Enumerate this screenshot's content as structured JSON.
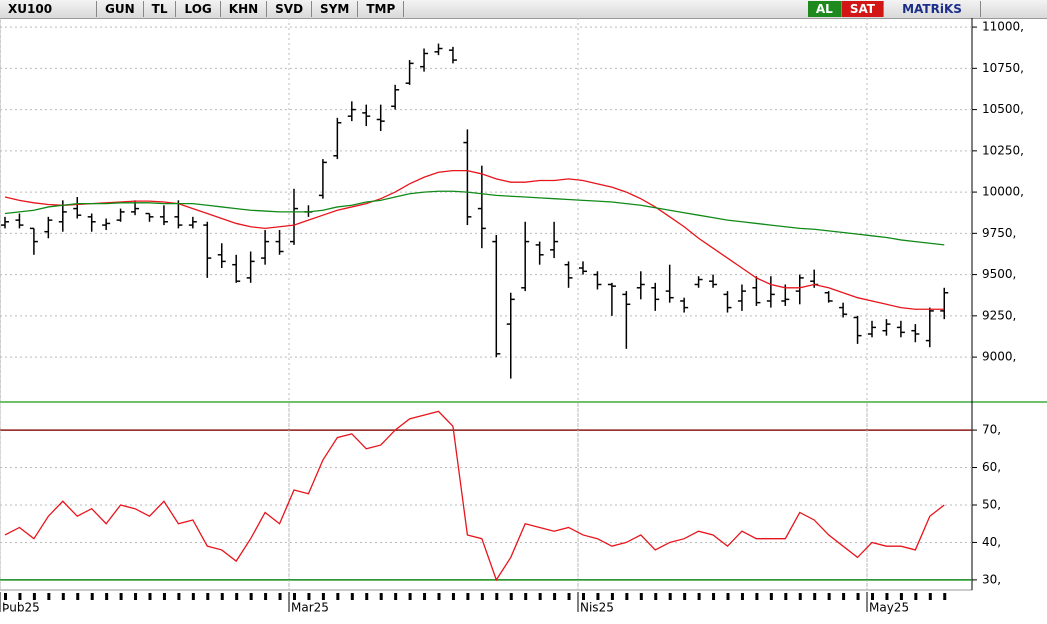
{
  "toolbar": {
    "symbol": "XU100",
    "buttons": [
      "GUN",
      "TL",
      "LOG",
      "KHN",
      "SVD",
      "SYM",
      "TMP"
    ],
    "buy": "AL",
    "sell": "SAT",
    "brand": "MATRiKS"
  },
  "chart_data": [
    {
      "type": "ohlc",
      "open": [
        9800,
        9830,
        9780,
        9760,
        9820,
        9900,
        9850,
        9800,
        9830,
        9880,
        9870,
        9850,
        9850,
        9800,
        9800,
        9620,
        9560,
        9480,
        9600,
        9700,
        9700,
        9880,
        9980,
        10220,
        10460,
        10480,
        10440,
        10520,
        10660,
        10760,
        10850,
        10860,
        10300,
        9900,
        9700,
        9200,
        9420,
        9680,
        9650,
        9560,
        9540,
        9500,
        9440,
        9380,
        9420,
        9420,
        9400,
        9340,
        9440,
        9460,
        9380,
        9340,
        9420,
        9340,
        9340,
        9400,
        9460,
        9390,
        9300,
        9240,
        9140,
        9160,
        9180,
        9160,
        9100,
        9280
      ],
      "high": [
        9850,
        9870,
        9780,
        9850,
        9950,
        9970,
        9870,
        9840,
        9900,
        9950,
        9870,
        9920,
        9950,
        9850,
        9820,
        9690,
        9620,
        9640,
        9770,
        9770,
        10020,
        9920,
        10200,
        10450,
        10550,
        10530,
        10530,
        10650,
        10800,
        10870,
        10900,
        10880,
        10380,
        10160,
        9740,
        9390,
        9820,
        9700,
        9820,
        9580,
        9580,
        9520,
        9450,
        9400,
        9520,
        9450,
        9560,
        9360,
        9490,
        9500,
        9400,
        9440,
        9490,
        9490,
        9440,
        9500,
        9530,
        9400,
        9330,
        9250,
        9220,
        9230,
        9220,
        9200,
        9300,
        9420
      ],
      "low": [
        9780,
        9780,
        9620,
        9720,
        9760,
        9840,
        9760,
        9770,
        9820,
        9860,
        9820,
        9800,
        9780,
        9780,
        9480,
        9540,
        9450,
        9450,
        9560,
        9620,
        9680,
        9850,
        9960,
        10200,
        10430,
        10400,
        10370,
        10500,
        10650,
        10730,
        10830,
        10780,
        9800,
        9660,
        9000,
        8870,
        9400,
        9560,
        9600,
        9420,
        9500,
        9410,
        9250,
        9050,
        9350,
        9280,
        9330,
        9270,
        9420,
        9420,
        9270,
        9280,
        9310,
        9300,
        9310,
        9320,
        9420,
        9330,
        9240,
        9080,
        9120,
        9130,
        9120,
        9090,
        9060,
        9230
      ],
      "close": [
        9820,
        9800,
        9700,
        9830,
        9880,
        9860,
        9820,
        9810,
        9880,
        9900,
        9850,
        9820,
        9800,
        9820,
        9600,
        9580,
        9460,
        9580,
        9700,
        9640,
        9900,
        9880,
        10180,
        10420,
        10500,
        10460,
        10430,
        10620,
        10780,
        10840,
        10870,
        10800,
        9850,
        9780,
        9020,
        9350,
        9700,
        9620,
        9700,
        9480,
        9520,
        9440,
        9430,
        9320,
        9440,
        9350,
        9360,
        9300,
        9470,
        9440,
        9300,
        9400,
        9330,
        9380,
        9350,
        9480,
        9440,
        9340,
        9260,
        9130,
        9180,
        9200,
        9150,
        9140,
        9280,
        9390
      ],
      "bar_color": "#000000",
      "series": [
        {
          "color": "#e8141b",
          "values": [
            9970,
            9950,
            9935,
            9925,
            9920,
            9925,
            9930,
            9935,
            9940,
            9945,
            9945,
            9940,
            9930,
            9900,
            9870,
            9840,
            9810,
            9790,
            9780,
            9790,
            9800,
            9830,
            9860,
            9890,
            9910,
            9930,
            9960,
            10000,
            10050,
            10090,
            10120,
            10130,
            10130,
            10110,
            10080,
            10060,
            10060,
            10070,
            10070,
            10080,
            10070,
            10050,
            10030,
            10000,
            9960,
            9910,
            9850,
            9790,
            9720,
            9660,
            9600,
            9540,
            9480,
            9440,
            9420,
            9420,
            9440,
            9420,
            9390,
            9360,
            9340,
            9320,
            9300,
            9290,
            9290,
            9290
          ]
        },
        {
          "color": "#108a18",
          "values": [
            9870,
            9880,
            9890,
            9910,
            9920,
            9930,
            9930,
            9930,
            9935,
            9935,
            9935,
            9930,
            9930,
            9930,
            9920,
            9910,
            9900,
            9890,
            9885,
            9880,
            9880,
            9880,
            9890,
            9910,
            9920,
            9940,
            9950,
            9970,
            9990,
            10000,
            10005,
            10005,
            10000,
            9990,
            9980,
            9975,
            9970,
            9965,
            9960,
            9955,
            9950,
            9945,
            9940,
            9930,
            9920,
            9905,
            9890,
            9875,
            9860,
            9845,
            9830,
            9820,
            9810,
            9800,
            9790,
            9780,
            9775,
            9765,
            9755,
            9745,
            9735,
            9725,
            9710,
            9700,
            9690,
            9680
          ]
        }
      ],
      "ylim": [
        8740,
        11055
      ],
      "yticks": [
        {
          "value": 9000,
          "label": "9000,"
        },
        {
          "value": 9250,
          "label": "9250,"
        },
        {
          "value": 9500,
          "label": "9500,"
        },
        {
          "value": 9750,
          "label": "9750,"
        },
        {
          "value": 10000,
          "label": "10000,"
        },
        {
          "value": 10250,
          "label": "10250,"
        },
        {
          "value": 10500,
          "label": "10500,"
        },
        {
          "value": 10750,
          "label": "10750,"
        },
        {
          "value": 11000,
          "label": "11000,"
        }
      ],
      "month_labels": [
        {
          "index": 0,
          "label": "Þub25"
        },
        {
          "index": 20,
          "label": "Mar25"
        },
        {
          "index": 40,
          "label": "Nis25"
        },
        {
          "index": 60,
          "label": "May25"
        }
      ],
      "grid": true
    },
    {
      "type": "line",
      "series": [
        {
          "color": "#e8141b",
          "values": [
            42,
            44,
            41,
            47,
            51,
            47,
            49,
            45,
            50,
            49,
            47,
            51,
            45,
            46,
            39,
            38,
            35,
            41,
            48,
            45,
            54,
            53,
            62,
            68,
            69,
            65,
            66,
            70,
            73,
            74,
            75,
            71,
            42,
            41,
            30,
            36,
            45,
            44,
            43,
            44,
            42,
            41,
            39,
            40,
            42,
            38,
            40,
            41,
            43,
            42,
            39,
            43,
            41,
            41,
            41,
            48,
            46,
            42,
            39,
            36,
            40,
            39,
            39,
            38,
            47,
            50
          ]
        }
      ],
      "levels": [
        {
          "value": 70,
          "color": "#8b1a1a"
        },
        {
          "value": 30,
          "color": "#108a18"
        }
      ],
      "ylim": [
        27.3,
        76.7
      ],
      "yticks": [
        {
          "value": 30,
          "label": "30,"
        },
        {
          "value": 40,
          "label": "40,"
        },
        {
          "value": 50,
          "label": "50,"
        },
        {
          "value": 60,
          "label": "60,"
        },
        {
          "value": 70,
          "label": "70,"
        }
      ],
      "grid": true
    }
  ]
}
